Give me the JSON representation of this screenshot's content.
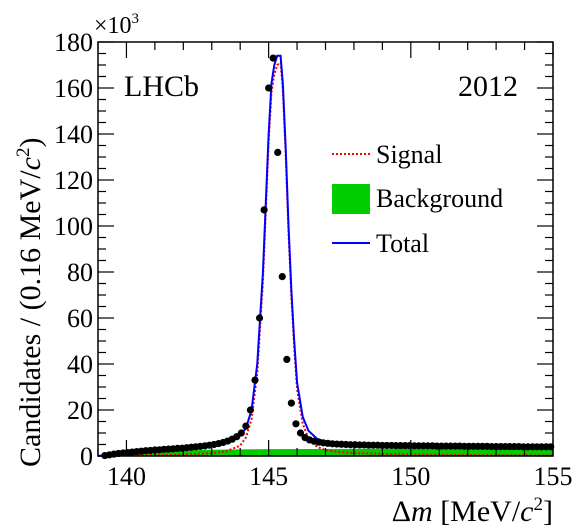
{
  "chart_data": {
    "type": "line",
    "title": "",
    "experiment_label": "LHCb",
    "year_label": "2012",
    "xlabel": {
      "prefix": "Δ",
      "var": "m",
      "unit_open": " [MeV/",
      "unit_var": "c",
      "unit_exp": "2",
      "unit_close": "]"
    },
    "ylabel": {
      "text": "Candidates / (0.16 MeV/",
      "var": "c",
      "exp": "2",
      "close": ")"
    },
    "y_multiplier": {
      "base": "×10",
      "exp": "3"
    },
    "xlim": [
      139,
      155
    ],
    "ylim": [
      0,
      180
    ],
    "x_ticks": [
      140,
      145,
      150,
      155
    ],
    "y_ticks": [
      0,
      20,
      40,
      60,
      80,
      100,
      120,
      140,
      160,
      180
    ],
    "legend_position": "right",
    "legend": [
      {
        "name": "Signal",
        "style": "dotted-line",
        "color": "#ff0000"
      },
      {
        "name": "Background",
        "style": "filled-box",
        "color": "#00cc00"
      },
      {
        "name": "Total",
        "style": "solid-line",
        "color": "#0000ff"
      }
    ],
    "data_points": {
      "x": [
        139.24,
        139.4,
        139.56,
        139.72,
        139.88,
        140.04,
        140.2,
        140.36,
        140.52,
        140.68,
        140.84,
        141.0,
        141.16,
        141.32,
        141.48,
        141.64,
        141.8,
        141.96,
        142.12,
        142.28,
        142.44,
        142.6,
        142.76,
        142.92,
        143.08,
        143.24,
        143.4,
        143.56,
        143.72,
        143.88,
        144.04,
        144.2,
        144.36,
        144.52,
        144.68,
        144.84,
        145.0,
        145.16,
        145.32,
        145.48,
        145.64,
        145.8,
        145.96,
        146.12,
        146.28,
        146.44,
        146.6,
        146.76,
        146.92,
        147.08,
        147.24,
        147.4,
        147.56,
        147.72,
        147.88,
        148.04,
        148.2,
        148.36,
        148.52,
        148.68,
        148.84,
        149.0,
        149.16,
        149.32,
        149.48,
        149.64,
        149.8,
        149.96,
        150.12,
        150.28,
        150.44,
        150.6,
        150.76,
        150.92,
        151.08,
        151.24,
        151.4,
        151.56,
        151.72,
        151.88,
        152.04,
        152.2,
        152.36,
        152.52,
        152.68,
        152.84,
        153.0,
        153.16,
        153.32,
        153.48,
        153.64,
        153.8,
        153.96,
        154.12,
        154.28,
        154.44,
        154.6,
        154.76,
        154.92
      ],
      "y": [
        0.2,
        0.5,
        0.8,
        1.1,
        1.3,
        1.5,
        1.7,
        1.9,
        2.1,
        2.3,
        2.4,
        2.6,
        2.7,
        2.9,
        3.0,
        3.1,
        3.3,
        3.4,
        3.6,
        3.8,
        4.0,
        4.2,
        4.4,
        4.7,
        5.0,
        5.4,
        5.9,
        6.5,
        7.3,
        8.4,
        10.0,
        13.0,
        20.0,
        33.0,
        60.0,
        107.0,
        160.0,
        173.0,
        132.0,
        78.0,
        42.0,
        23.0,
        14.0,
        10.0,
        8.0,
        7.0,
        6.4,
        6.0,
        5.7,
        5.5,
        5.3,
        5.2,
        5.1,
        5.0,
        4.9,
        4.9,
        4.8,
        4.8,
        4.7,
        4.7,
        4.7,
        4.6,
        4.6,
        4.6,
        4.5,
        4.5,
        4.5,
        4.5,
        4.4,
        4.4,
        4.4,
        4.4,
        4.4,
        4.3,
        4.3,
        4.3,
        4.3,
        4.3,
        4.3,
        4.2,
        4.2,
        4.2,
        4.2,
        4.2,
        4.2,
        4.1,
        4.1,
        4.1,
        4.1,
        4.1,
        4.1,
        4.1,
        4.0,
        4.0,
        4.0,
        4.0,
        4.0,
        4.0,
        4.0
      ]
    },
    "total_curve": {
      "x": [
        139,
        139.5,
        140,
        140.5,
        141,
        141.5,
        142,
        142.5,
        143,
        143.5,
        144,
        144.2,
        144.4,
        144.6,
        144.8,
        145.0,
        145.1,
        145.2,
        145.3,
        145.42,
        145.5,
        145.6,
        145.7,
        145.8,
        145.9,
        146.0,
        146.2,
        146.4,
        146.7,
        147,
        147.5,
        148,
        149,
        150,
        151,
        152,
        153,
        154,
        155
      ],
      "y": [
        0.0,
        0.8,
        1.6,
        2.1,
        2.6,
        3.0,
        3.5,
        4.1,
        4.8,
        6.0,
        9.0,
        12.0,
        20.0,
        40.0,
        80.0,
        140.0,
        162.0,
        170.0,
        174.0,
        174.0,
        162.0,
        134.0,
        100.0,
        72.0,
        50.0,
        32.0,
        17.0,
        11.0,
        7.5,
        6.2,
        5.3,
        4.9,
        4.6,
        4.5,
        4.4,
        4.3,
        4.2,
        4.1,
        4.0
      ]
    },
    "signal_curve": {
      "x": [
        139,
        140,
        141,
        142,
        143,
        143.5,
        144,
        144.2,
        144.4,
        144.6,
        144.8,
        145.0,
        145.1,
        145.2,
        145.3,
        145.42,
        145.5,
        145.6,
        145.7,
        145.8,
        145.9,
        146.0,
        146.2,
        146.4,
        146.7,
        147,
        147.5,
        148,
        149,
        150,
        151,
        152,
        153,
        154,
        155
      ],
      "y": [
        0.0,
        0.2,
        0.4,
        0.7,
        1.2,
        2.0,
        4.5,
        8.0,
        16.0,
        36.0,
        76.0,
        136.0,
        158.0,
        166.0,
        170.0,
        171.0,
        159.0,
        131.0,
        97.0,
        69.0,
        47.0,
        29.0,
        14.0,
        7.5,
        4.0,
        2.6,
        1.7,
        1.3,
        0.9,
        0.7,
        0.5,
        0.4,
        0.3,
        0.25,
        0.2
      ]
    },
    "background_curve": {
      "x": [
        139,
        139.5,
        140,
        141,
        142,
        145,
        150,
        155
      ],
      "y": [
        0.0,
        1.2,
        1.8,
        2.2,
        2.6,
        3.0,
        3.2,
        3.3
      ]
    }
  },
  "colors": {
    "data": "#000000",
    "total": "#0000ff",
    "signal": "#ff0000",
    "background": "#00cc00"
  }
}
